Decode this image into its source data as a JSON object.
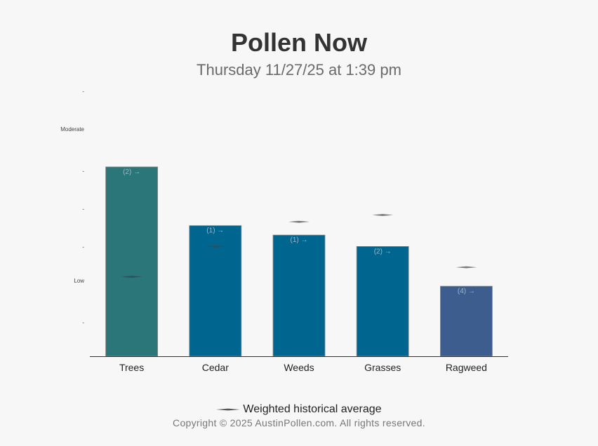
{
  "header": {
    "title": "Pollen Now",
    "subtitle": "Thursday 11/27/25 at 1:39 pm"
  },
  "legend": {
    "label": "Weighted historical average"
  },
  "footer": {
    "copyright": "Copyright © 2025 AustinPollen.com.  All rights reserved."
  },
  "chart_data": {
    "type": "bar",
    "categories": [
      "Trees",
      "Cedar",
      "Weeds",
      "Grasses",
      "Ragweed"
    ],
    "values": [
      5.0,
      3.45,
      3.2,
      2.9,
      1.85
    ],
    "historical_average": [
      2.1,
      2.9,
      3.55,
      3.73,
      2.35
    ],
    "bar_labels": [
      "(2) →",
      "(1) →",
      "(1) →",
      "(2) →",
      "(4) →"
    ],
    "bar_colors": [
      "#2a7678",
      "#00668f",
      "#00668f",
      "#00668f",
      "#3c5d8d"
    ],
    "y_ticks": [
      {
        "value": 0.9,
        "label": "-"
      },
      {
        "value": 2.0,
        "label": "Low"
      },
      {
        "value": 2.9,
        "label": "-"
      },
      {
        "value": 3.9,
        "label": "-"
      },
      {
        "value": 4.9,
        "label": "-"
      },
      {
        "value": 6.0,
        "label": "Moderate"
      },
      {
        "value": 7.0,
        "label": "-"
      }
    ],
    "ylim": [
      0,
      7.0
    ],
    "grid": false,
    "legend_position": "bottom"
  }
}
